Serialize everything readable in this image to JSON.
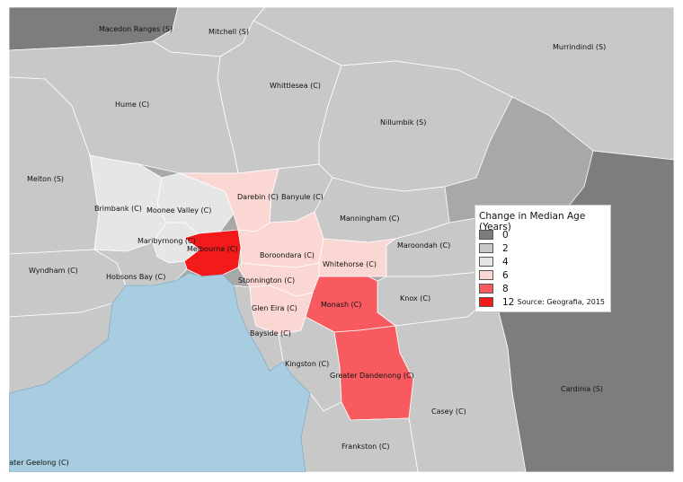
{
  "map": {
    "water_color": "#a9cde0",
    "legend": {
      "title": "Change in Median Age (Years)",
      "classes": [
        {
          "label": "0",
          "color": "#7d7d7d"
        },
        {
          "label": "2",
          "color": "#c8c8c8"
        },
        {
          "label": "4",
          "color": "#e6e6e6"
        },
        {
          "label": "6",
          "color": "#fbd7d3"
        },
        {
          "label": "8",
          "color": "#f75a5f"
        },
        {
          "label": "12",
          "color": "#f21a1a"
        }
      ],
      "source": "Source: Geografia, 2015"
    },
    "regions": [
      {
        "name": "Macedon Ranges (S)",
        "value_class": "0"
      },
      {
        "name": "Mitchell (S)",
        "value_class": "2"
      },
      {
        "name": "Murrindindi (S)",
        "value_class": "2"
      },
      {
        "name": "Whittlesea (C)",
        "value_class": "2"
      },
      {
        "name": "Hume (C)",
        "value_class": "2"
      },
      {
        "name": "Nillumbik (S)",
        "value_class": "2"
      },
      {
        "name": "Melton (S)",
        "value_class": "2"
      },
      {
        "name": "Brimbank (C)",
        "value_class": "4"
      },
      {
        "name": "Moonee Valley (C)",
        "value_class": "4"
      },
      {
        "name": "Darebin (C)",
        "value_class": "6"
      },
      {
        "name": "Banyule (C)",
        "value_class": "2"
      },
      {
        "name": "Manningham (C)",
        "value_class": "2"
      },
      {
        "name": "Maribyrnong (C)",
        "value_class": "4"
      },
      {
        "name": "Melbourne (C)",
        "value_class": "12"
      },
      {
        "name": "Boroondara (C)",
        "value_class": "6"
      },
      {
        "name": "Maroondah (C)",
        "value_class": "2"
      },
      {
        "name": "Whitehorse (C)",
        "value_class": "6"
      },
      {
        "name": "Wyndham (C)",
        "value_class": "2"
      },
      {
        "name": "Hobsons Bay (C)",
        "value_class": "2"
      },
      {
        "name": "Stonnington (C)",
        "value_class": "6"
      },
      {
        "name": "Knox (C)",
        "value_class": "2"
      },
      {
        "name": "Monash (C)",
        "value_class": "8"
      },
      {
        "name": "Glen Eira (C)",
        "value_class": "6"
      },
      {
        "name": "Bayside (C)",
        "value_class": "2"
      },
      {
        "name": "Kingston (C)",
        "value_class": "2"
      },
      {
        "name": "Greater Dandenong (C)",
        "value_class": "8"
      },
      {
        "name": "Cardinia (S)",
        "value_class": "0"
      },
      {
        "name": "Casey (C)",
        "value_class": "2"
      },
      {
        "name": "Frankston (C)",
        "value_class": "2"
      },
      {
        "name": "Greater Geelong (C)",
        "value_class": "2"
      }
    ]
  }
}
